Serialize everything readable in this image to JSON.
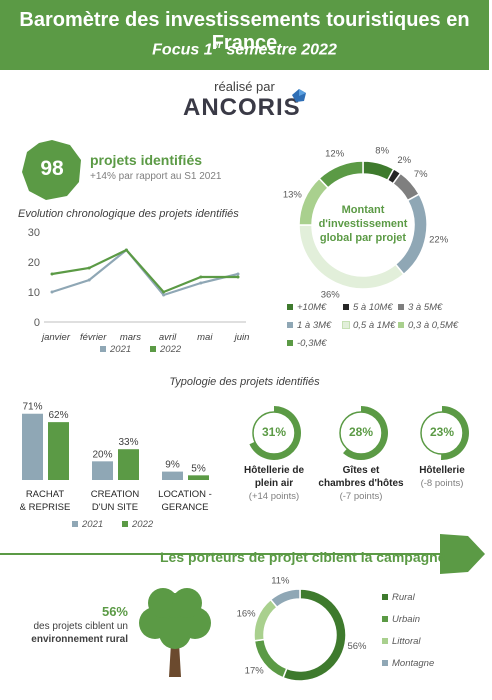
{
  "header": {
    "title": "Baromètre des investissements touristiques en France",
    "subtitle_pre": "Focus 1",
    "subtitle_sup": "er",
    "subtitle_post": " semestre 2022"
  },
  "credit": {
    "label": "réalisé par",
    "logo": "ANCORIS"
  },
  "projects": {
    "count": "98",
    "title": "projets identifiés",
    "sub": "+14% par rapport au S1 2021"
  },
  "colors": {
    "green": "#5b9a45",
    "gray_blue": "#8fa7b5",
    "dark_green": "#3e7a2d",
    "light_green": "#a9d08e",
    "black": "#262626",
    "gray": "#7f7f7f"
  },
  "chart_data": [
    {
      "type": "line",
      "title": "Evolution chronologique des projets identifiés",
      "categories": [
        "janvier",
        "février",
        "mars",
        "avril",
        "mai",
        "juin"
      ],
      "ylim": [
        0,
        30
      ],
      "yticks": [
        "0",
        "10",
        "20",
        "30"
      ],
      "series": [
        {
          "name": "2021",
          "values": [
            10,
            14,
            24,
            9,
            13,
            16
          ],
          "color": "#8fa7b5"
        },
        {
          "name": "2022",
          "values": [
            16,
            18,
            24,
            10,
            15,
            15
          ],
          "color": "#5b9a45"
        }
      ]
    },
    {
      "type": "pie",
      "title": "Montant d'investissement global par projet",
      "slices": [
        {
          "name": "+10M€",
          "value": 8,
          "label": "8%",
          "color": "#3e7a2d"
        },
        {
          "name": "5 à 10M€",
          "value": 2,
          "label": "2%",
          "color": "#262626"
        },
        {
          "name": "3 à 5M€",
          "value": 7,
          "label": "7%",
          "color": "#7f7f7f"
        },
        {
          "name": "1 à 3M€",
          "value": 22,
          "label": "22%",
          "color": "#8fa7b5"
        },
        {
          "name": "0,5 à 1M€",
          "value": 36,
          "label": "36%",
          "color": "#e2efda"
        },
        {
          "name": "0,3 à 0,5M€",
          "value": 13,
          "label": "13%",
          "color": "#a9d08e"
        },
        {
          "name": "-0,3M€",
          "value": 12,
          "label": "12%",
          "color": "#5b9a45"
        }
      ]
    },
    {
      "type": "bar",
      "title": "Typologie des projets identifiés",
      "categories": [
        "RACHAT & REPRISE",
        "CREATION D'UN SITE",
        "LOCATION - GERANCE"
      ],
      "category_lines": [
        [
          "RACHAT",
          "& REPRISE"
        ],
        [
          "CREATION",
          "D'UN SITE"
        ],
        [
          "LOCATION -",
          "GERANCE"
        ]
      ],
      "ylim": [
        0,
        75
      ],
      "series": [
        {
          "name": "2021",
          "values": [
            71,
            20,
            9
          ],
          "labels": [
            "71%",
            "20%",
            "9%"
          ],
          "color": "#8fa7b5"
        },
        {
          "name": "2022",
          "values": [
            62,
            33,
            5
          ],
          "labels": [
            "62%",
            "33%",
            "5%"
          ],
          "color": "#5b9a45"
        }
      ]
    },
    {
      "type": "pie",
      "title": "Les porteurs de projet ciblent la campagne",
      "slices": [
        {
          "name": "Rural",
          "value": 56,
          "label": "56%",
          "color": "#3e7a2d"
        },
        {
          "name": "Urbain",
          "value": 17,
          "label": "17%",
          "color": "#5b9a45"
        },
        {
          "name": "Littoral",
          "value": 16,
          "label": "16%",
          "color": "#a9d08e"
        },
        {
          "name": "Montagne",
          "value": 11,
          "label": "11%",
          "color": "#8fa7b5"
        }
      ]
    }
  ],
  "categories_types": [
    {
      "pct": 31,
      "label": "31%",
      "line1": "Hôtellerie de",
      "line2": "plein air",
      "sub": "(+14 points)"
    },
    {
      "pct": 28,
      "label": "28%",
      "line1": "Gîtes et",
      "line2": "chambres d'hôtes",
      "sub": "(-7 points)"
    },
    {
      "pct": 23,
      "label": "23%",
      "line1": "Hôtellerie",
      "line2": "",
      "sub": "(-8 points)"
    }
  ],
  "campagne": {
    "title": "Les porteurs de projet ciblent la campagne",
    "rural_pct": "56%",
    "rural_text_1": "des projets ciblent un",
    "rural_text_2": "environnement rural"
  }
}
